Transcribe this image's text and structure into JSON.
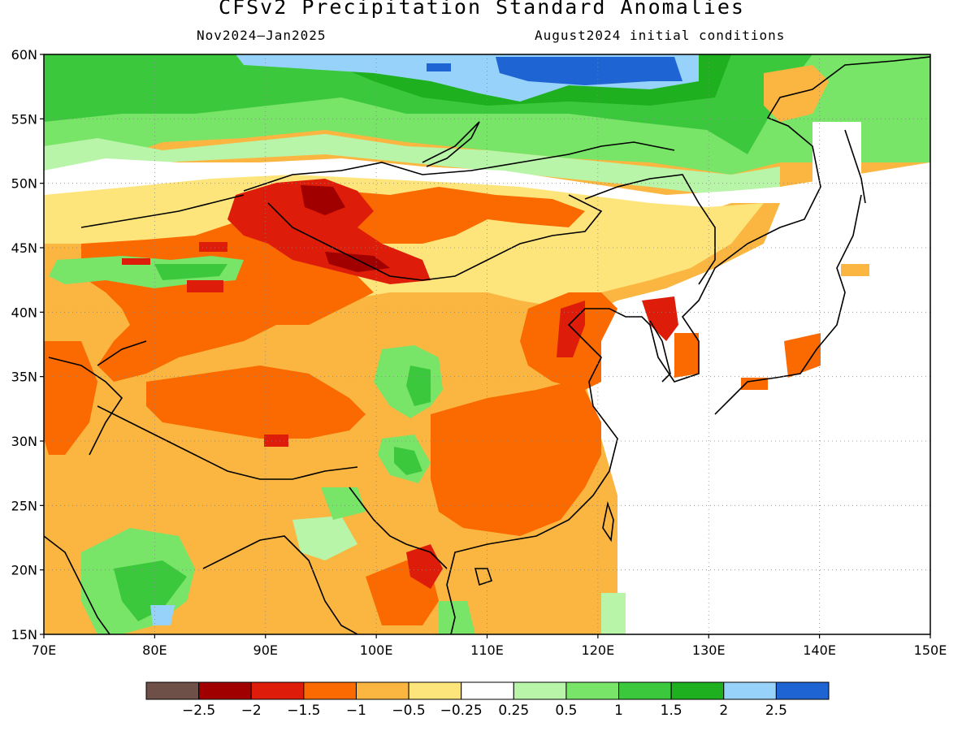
{
  "title": "CFSv2 Precipitation Standard Anomalies",
  "subtitle_left": "Nov2024–Jan2025",
  "subtitle_right": "August2024 initial conditions",
  "map": {
    "lon_range": [
      70,
      150
    ],
    "lat_range": [
      15,
      60
    ],
    "lon_ticks": [
      "70E",
      "80E",
      "90E",
      "100E",
      "110E",
      "120E",
      "130E",
      "140E",
      "150E"
    ],
    "lat_ticks": [
      "15N",
      "20N",
      "25N",
      "30N",
      "35N",
      "40N",
      "45N",
      "50N",
      "55N",
      "60N"
    ],
    "grid": "dotted"
  },
  "legend": {
    "colors": [
      "#6e5048",
      "#a00000",
      "#dd1c0a",
      "#fa6a00",
      "#fbb642",
      "#fde57c",
      "#ffffff",
      "#b8f5a8",
      "#78e468",
      "#3cc83c",
      "#1eb01e",
      "#96d2fa",
      "#1e64d2"
    ],
    "labels": [
      "−2.5",
      "−2",
      "−1.5",
      "−1",
      "−0.5",
      "−0.25",
      "0.25",
      "0.5",
      "1",
      "1.5",
      "2",
      "2.5"
    ]
  }
}
